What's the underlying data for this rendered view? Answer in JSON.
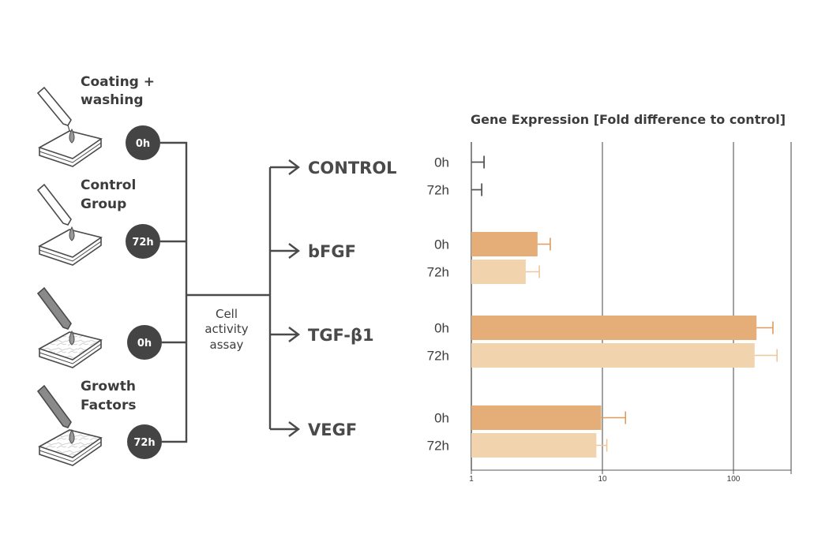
{
  "diagram": {
    "groups": [
      {
        "label_line1": "Coating +",
        "label_line2": "washing",
        "badge": "0h",
        "sponge": "plain"
      },
      {
        "label_line1": "Control",
        "label_line2": "Group",
        "badge": "72h",
        "sponge": "plain"
      },
      {
        "label_line1": "",
        "label_line2": "",
        "badge": "0h",
        "sponge": "textured"
      },
      {
        "label_line1": "Growth",
        "label_line2": "Factors",
        "badge": "72h",
        "sponge": "textured"
      }
    ],
    "assay_label": [
      "Cell",
      "activity",
      "assay"
    ],
    "conditions": [
      "CONTROL",
      "bFGF",
      "TGF-β1",
      "VEGF"
    ]
  },
  "chart_data": {
    "type": "bar",
    "orientation": "horizontal",
    "title": "Gene Expression [Fold difference to control]",
    "xscale": "log",
    "xlim": [
      1,
      250
    ],
    "xticks": [
      "1",
      "10",
      "100"
    ],
    "grid": true,
    "categories": [
      "CONTROL",
      "bFGF",
      "TGF-β1",
      "VEGF"
    ],
    "series": [
      {
        "name": "0h",
        "color": "#e5ae79",
        "values": [
          1.0,
          3.2,
          150,
          9.8
        ],
        "errors": [
          1.25,
          4.0,
          200,
          15.0
        ]
      },
      {
        "name": "72h",
        "color": "#f1d4ad",
        "values": [
          1.0,
          2.6,
          145,
          9.0
        ],
        "errors": [
          1.2,
          3.3,
          215,
          10.8
        ]
      }
    ],
    "error_colors": {
      "CONTROL": "#555555"
    }
  }
}
